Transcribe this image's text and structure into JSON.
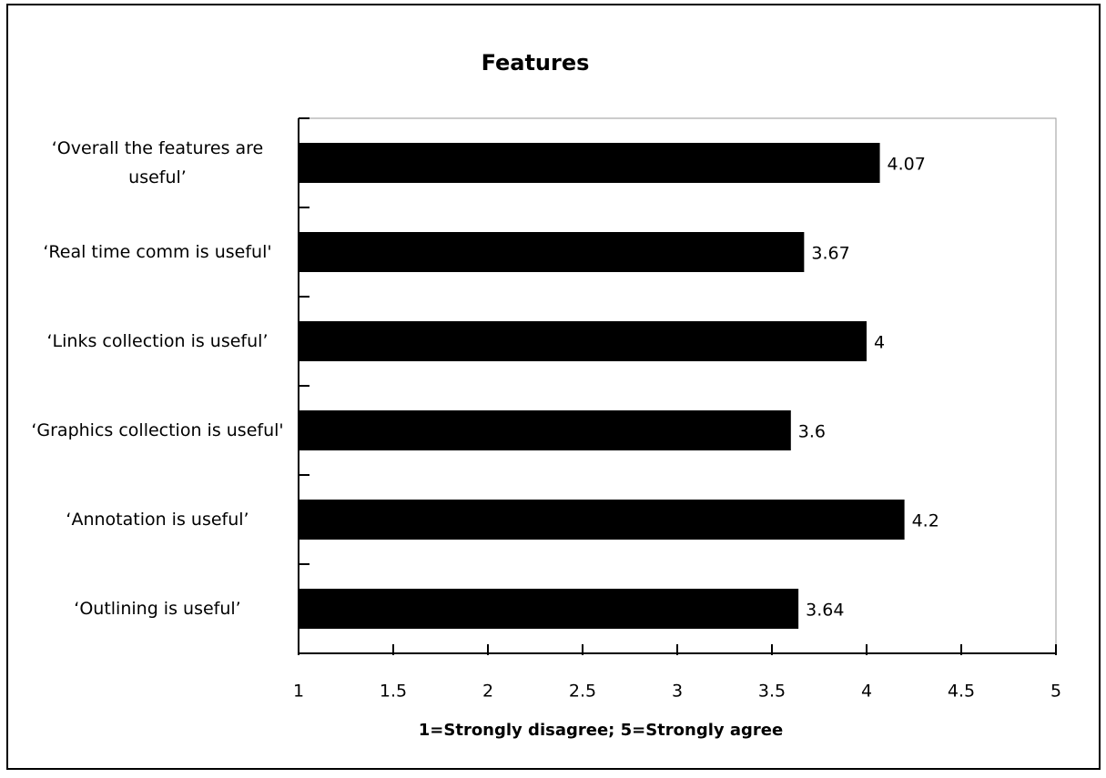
{
  "chart_data": {
    "type": "bar",
    "orientation": "horizontal",
    "title": "Features",
    "x_label": "1=Strongly disagree; 5=Strongly agree",
    "categories": [
      "‘Overall the features are useful’",
      "‘Real time comm is useful'",
      "‘Links collection is useful’",
      "‘Graphics collection is useful'",
      "‘Annotation is useful’",
      "‘Outlining is useful’"
    ],
    "values": [
      4.07,
      3.67,
      4,
      3.6,
      4.2,
      3.64
    ],
    "color": "#000000",
    "xlim": [
      1,
      5
    ],
    "xticks": [
      1,
      1.5,
      2,
      2.5,
      3,
      3.5,
      4,
      4.5,
      5
    ],
    "grid": false
  }
}
